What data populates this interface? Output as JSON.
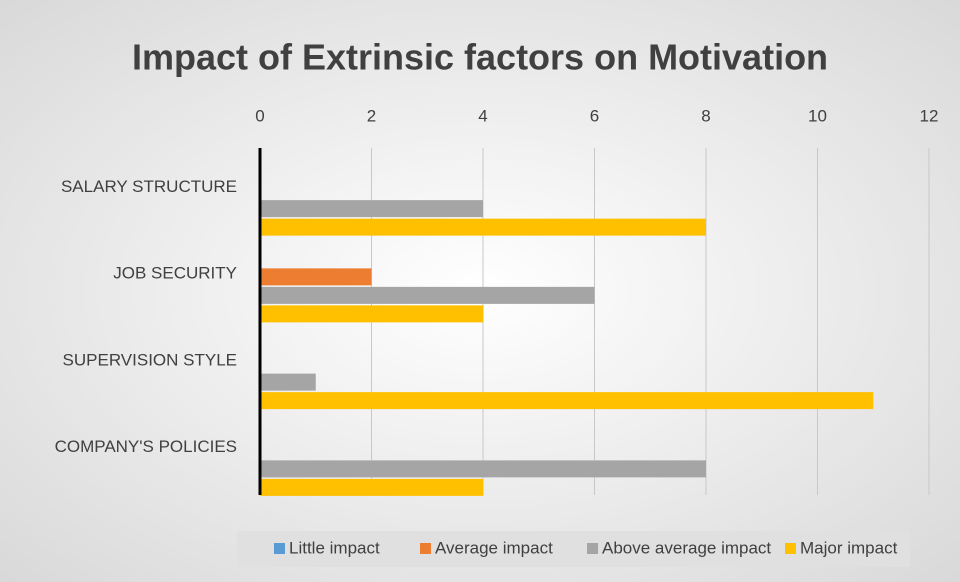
{
  "chart_data": {
    "type": "hbar",
    "title": "Impact of Extrinsic factors on Motivation",
    "categories": [
      "SALARY STRUCTURE",
      "JOB SECURITY",
      "SUPERVISION STYLE",
      "COMPANY'S POLICIES"
    ],
    "series": [
      {
        "name": "Little impact",
        "color": "#5b9bd5",
        "values": [
          0,
          0,
          0,
          0
        ]
      },
      {
        "name": "Average impact",
        "color": "#ed7d31",
        "values": [
          0,
          2,
          0,
          0
        ]
      },
      {
        "name": "Above average impact",
        "color": "#a5a5a5",
        "values": [
          4,
          6,
          1,
          8
        ]
      },
      {
        "name": "Major impact",
        "color": "#ffc000",
        "values": [
          8,
          4,
          11,
          4
        ]
      }
    ],
    "xlim": [
      0,
      12
    ],
    "xticks": [
      0,
      2,
      4,
      6,
      8,
      10,
      12
    ],
    "grid": true,
    "legend": "bottom"
  }
}
